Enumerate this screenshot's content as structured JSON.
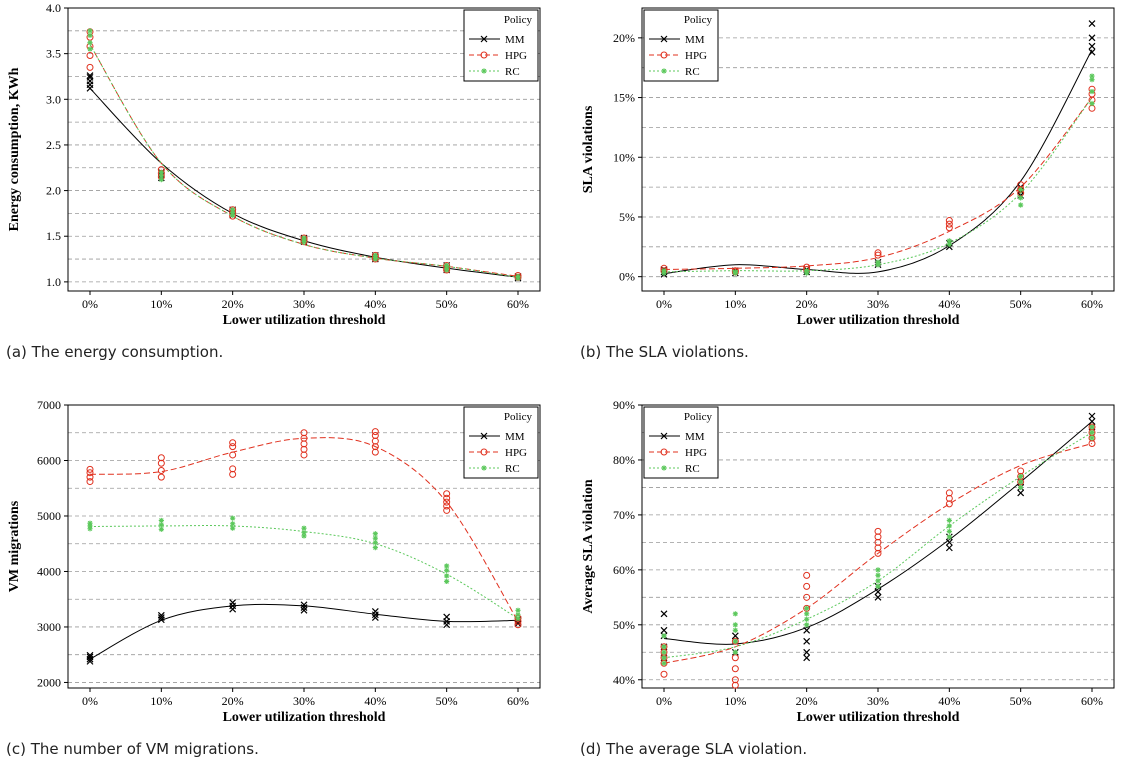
{
  "captions": {
    "a": "(a) The energy consumption.",
    "b": "(b) The SLA violations.",
    "c": "(c) The number of VM migrations.",
    "d": "(d) The average SLA violation."
  },
  "colors": {
    "MM": "#000000",
    "HPG": "#e0301e",
    "RC": "#5cc85c",
    "grid": "#9a9a9a"
  },
  "chart_data": [
    {
      "type": "scatter",
      "xlabel": "Lower utilization threshold",
      "ylabel": "Energy consumption, KWh",
      "x_ticks": [
        "0%",
        "10%",
        "20%",
        "30%",
        "40%",
        "50%",
        "60%"
      ],
      "y_ticks": [
        "1.0",
        "1.5",
        "2.0",
        "2.5",
        "3.0",
        "3.5",
        "4.0"
      ],
      "ylim": [
        0.9,
        4.0
      ],
      "legend": {
        "title": "Policy",
        "position": "top-right",
        "entries": [
          "MM",
          "HPG",
          "RC"
        ]
      },
      "grid": "horizontal dashed",
      "series": [
        {
          "name": "MM",
          "marker": "x",
          "line": "solid",
          "points": [
            [
              0,
              [
                3.12,
                3.16,
                3.2,
                3.24,
                3.26
              ]
            ],
            [
              10,
              [
                2.14,
                2.17,
                2.2
              ]
            ],
            [
              20,
              [
                1.73,
                1.76,
                1.79
              ]
            ],
            [
              30,
              [
                1.44,
                1.46,
                1.48
              ]
            ],
            [
              40,
              [
                1.25,
                1.27,
                1.29
              ]
            ],
            [
              50,
              [
                1.13,
                1.15,
                1.18
              ]
            ],
            [
              60,
              [
                1.04,
                1.06
              ]
            ]
          ],
          "fit": [
            3.12,
            2.3,
            1.75,
            1.45,
            1.27,
            1.15,
            1.05
          ]
        },
        {
          "name": "HPG",
          "marker": "o",
          "line": "dashed",
          "points": [
            [
              0,
              [
                3.35,
                3.48,
                3.58,
                3.68,
                3.74
              ]
            ],
            [
              10,
              [
                2.15,
                2.19,
                2.23
              ]
            ],
            [
              20,
              [
                1.72,
                1.76,
                1.79
              ]
            ],
            [
              30,
              [
                1.44,
                1.46,
                1.48
              ]
            ],
            [
              40,
              [
                1.25,
                1.27,
                1.29
              ]
            ],
            [
              50,
              [
                1.13,
                1.15,
                1.18
              ]
            ],
            [
              60,
              [
                1.05,
                1.07
              ]
            ]
          ],
          "fit": [
            3.6,
            2.3,
            1.72,
            1.41,
            1.26,
            1.17,
            1.06
          ]
        },
        {
          "name": "RC",
          "marker": "*",
          "line": "dotted",
          "points": [
            [
              0,
              [
                3.55,
                3.62,
                3.7,
                3.75
              ]
            ],
            [
              10,
              [
                2.12,
                2.16,
                2.2
              ]
            ],
            [
              20,
              [
                1.73,
                1.76,
                1.79
              ]
            ],
            [
              30,
              [
                1.44,
                1.46,
                1.48
              ]
            ],
            [
              40,
              [
                1.25,
                1.27,
                1.29
              ]
            ],
            [
              50,
              [
                1.13,
                1.15,
                1.18
              ]
            ],
            [
              60,
              [
                1.04,
                1.06
              ]
            ]
          ],
          "fit": [
            3.6,
            2.3,
            1.72,
            1.41,
            1.26,
            1.17,
            1.05
          ]
        }
      ]
    },
    {
      "type": "scatter",
      "xlabel": "Lower utilization threshold",
      "ylabel": "SLA violations",
      "x_ticks": [
        "0%",
        "10%",
        "20%",
        "30%",
        "40%",
        "50%",
        "60%"
      ],
      "y_ticks": [
        "0%",
        "5%",
        "10%",
        "15%",
        "20%"
      ],
      "ylim": [
        -1.2,
        22.5
      ],
      "legend": {
        "title": "Policy",
        "position": "top-left",
        "entries": [
          "MM",
          "HPG",
          "RC"
        ]
      },
      "grid": "horizontal dashed",
      "series": [
        {
          "name": "MM",
          "marker": "x",
          "line": "solid",
          "points": [
            [
              0,
              [
                0.2,
                0.4,
                0.6
              ]
            ],
            [
              10,
              [
                0.3,
                0.5
              ]
            ],
            [
              20,
              [
                0.4,
                0.6
              ]
            ],
            [
              30,
              [
                1.0,
                1.2
              ]
            ],
            [
              40,
              [
                2.5,
                2.8
              ]
            ],
            [
              50,
              [
                6.8,
                7.2,
                7.5
              ]
            ],
            [
              60,
              [
                18.8,
                19.3,
                20.0,
                21.2
              ]
            ]
          ],
          "fit": [
            0.25,
            1.0,
            0.6,
            0.4,
            2.6,
            8.0,
            19.0
          ]
        },
        {
          "name": "HPG",
          "marker": "o",
          "line": "dashed",
          "points": [
            [
              0,
              [
                0.5,
                0.7
              ]
            ],
            [
              10,
              [
                0.4,
                0.5
              ]
            ],
            [
              20,
              [
                0.6,
                0.8
              ]
            ],
            [
              30,
              [
                1.8,
                2.0
              ]
            ],
            [
              40,
              [
                4.1,
                4.4,
                4.7
              ]
            ],
            [
              50,
              [
                7.0,
                7.3,
                7.7
              ]
            ],
            [
              60,
              [
                14.1,
                14.8,
                15.3,
                15.7
              ]
            ]
          ],
          "fit": [
            0.6,
            0.7,
            0.9,
            1.6,
            3.8,
            7.5,
            15.0
          ]
        },
        {
          "name": "RC",
          "marker": "*",
          "line": "dotted",
          "points": [
            [
              0,
              [
                0.3,
                0.5
              ]
            ],
            [
              10,
              [
                0.3,
                0.4
              ]
            ],
            [
              20,
              [
                0.3,
                0.5
              ]
            ],
            [
              30,
              [
                1.0,
                1.2
              ]
            ],
            [
              40,
              [
                2.7,
                3.0
              ]
            ],
            [
              50,
              [
                6.0,
                6.6,
                7.3
              ]
            ],
            [
              60,
              [
                14.5,
                15.5,
                16.5,
                16.8
              ]
            ]
          ],
          "fit": [
            0.4,
            0.5,
            0.5,
            1.0,
            2.8,
            7.0,
            15.0
          ]
        }
      ]
    },
    {
      "type": "scatter",
      "xlabel": "Lower utilization threshold",
      "ylabel": "VM migrations",
      "x_ticks": [
        "0%",
        "10%",
        "20%",
        "30%",
        "40%",
        "50%",
        "60%"
      ],
      "y_ticks": [
        "2000",
        "3000",
        "4000",
        "5000",
        "6000",
        "7000"
      ],
      "ylim": [
        1900,
        7000
      ],
      "legend": {
        "title": "Policy",
        "position": "top-right",
        "entries": [
          "MM",
          "HPG",
          "RC"
        ]
      },
      "grid": "horizontal dashed",
      "series": [
        {
          "name": "MM",
          "marker": "x",
          "line": "solid",
          "points": [
            [
              0,
              [
                2380,
                2420,
                2460,
                2490
              ]
            ],
            [
              10,
              [
                3130,
                3170,
                3210
              ]
            ],
            [
              20,
              [
                3320,
                3380,
                3440
              ]
            ],
            [
              30,
              [
                3300,
                3350,
                3400
              ]
            ],
            [
              40,
              [
                3170,
                3220,
                3280
              ]
            ],
            [
              50,
              [
                3040,
                3100,
                3180
              ]
            ],
            [
              60,
              [
                3060,
                3100,
                3140
              ]
            ]
          ],
          "fit": [
            2420,
            3120,
            3380,
            3380,
            3230,
            3100,
            3120
          ]
        },
        {
          "name": "HPG",
          "marker": "o",
          "line": "dashed",
          "points": [
            [
              0,
              [
                5620,
                5700,
                5780,
                5840
              ]
            ],
            [
              10,
              [
                5700,
                5820,
                5950,
                6050
              ]
            ],
            [
              20,
              [
                5750,
                5850,
                6100,
                6250,
                6320
              ]
            ],
            [
              30,
              [
                6100,
                6200,
                6300,
                6400,
                6500
              ]
            ],
            [
              40,
              [
                6150,
                6250,
                6350,
                6450,
                6520
              ]
            ],
            [
              50,
              [
                5100,
                5180,
                5250,
                5320,
                5400
              ]
            ],
            [
              60,
              [
                3040,
                3100,
                3160
              ]
            ]
          ],
          "fit": [
            5750,
            5800,
            6150,
            6400,
            6250,
            5250,
            3100
          ]
        },
        {
          "name": "RC",
          "marker": "*",
          "line": "dotted",
          "points": [
            [
              0,
              [
                4770,
                4820,
                4870
              ]
            ],
            [
              10,
              [
                4760,
                4840,
                4920
              ]
            ],
            [
              20,
              [
                4780,
                4860,
                4960
              ]
            ],
            [
              30,
              [
                4640,
                4700,
                4780
              ]
            ],
            [
              40,
              [
                4430,
                4520,
                4600,
                4680
              ]
            ],
            [
              50,
              [
                3820,
                3920,
                4020,
                4100
              ]
            ],
            [
              60,
              [
                3150,
                3220,
                3300
              ]
            ]
          ],
          "fit": [
            4810,
            4820,
            4820,
            4720,
            4500,
            3950,
            3150
          ]
        }
      ]
    },
    {
      "type": "scatter",
      "xlabel": "Lower utilization threshold",
      "ylabel": "Average SLA violation",
      "x_ticks": [
        "0%",
        "10%",
        "20%",
        "30%",
        "40%",
        "50%",
        "60%"
      ],
      "y_ticks": [
        "40%",
        "50%",
        "60%",
        "70%",
        "80%",
        "90%"
      ],
      "ylim": [
        38.5,
        90
      ],
      "legend": {
        "title": "Policy",
        "position": "top-left",
        "entries": [
          "MM",
          "HPG",
          "RC"
        ]
      },
      "grid": "horizontal dashed",
      "series": [
        {
          "name": "MM",
          "marker": "x",
          "line": "solid",
          "points": [
            [
              0,
              [
                44,
                46,
                48,
                49,
                52
              ]
            ],
            [
              10,
              [
                45,
                47,
                48
              ]
            ],
            [
              20,
              [
                44,
                45,
                47,
                49
              ]
            ],
            [
              30,
              [
                55,
                56,
                57
              ]
            ],
            [
              40,
              [
                64,
                65,
                66
              ]
            ],
            [
              50,
              [
                74,
                75,
                76
              ]
            ],
            [
              60,
              [
                86,
                87,
                88
              ]
            ]
          ],
          "fit": [
            47.5,
            46.5,
            49.5,
            56.5,
            65.5,
            76,
            87
          ]
        },
        {
          "name": "HPG",
          "marker": "o",
          "line": "dashed",
          "points": [
            [
              0,
              [
                41,
                43,
                44,
                45,
                46
              ]
            ],
            [
              10,
              [
                39,
                40,
                42,
                44,
                47
              ]
            ],
            [
              20,
              [
                53,
                55,
                57,
                59
              ]
            ],
            [
              30,
              [
                63,
                64,
                65,
                66,
                67
              ]
            ],
            [
              40,
              [
                72,
                73,
                74
              ]
            ],
            [
              50,
              [
                76,
                77,
                78
              ]
            ],
            [
              60,
              [
                83,
                84,
                85,
                86
              ]
            ]
          ],
          "fit": [
            43,
            46,
            53,
            63,
            72,
            79,
            83
          ]
        },
        {
          "name": "RC",
          "marker": "*",
          "line": "dotted",
          "points": [
            [
              0,
              [
                43,
                44,
                45,
                46,
                48
              ]
            ],
            [
              10,
              [
                45,
                47,
                49,
                50,
                52
              ]
            ],
            [
              20,
              [
                50,
                51,
                52,
                53
              ]
            ],
            [
              30,
              [
                57,
                58,
                59,
                60
              ]
            ],
            [
              40,
              [
                66,
                67,
                68,
                69
              ]
            ],
            [
              50,
              [
                75,
                76,
                77
              ]
            ],
            [
              60,
              [
                84,
                85,
                86
              ]
            ]
          ],
          "fit": [
            44,
            46,
            51,
            58,
            68,
            77,
            85
          ]
        }
      ]
    }
  ]
}
